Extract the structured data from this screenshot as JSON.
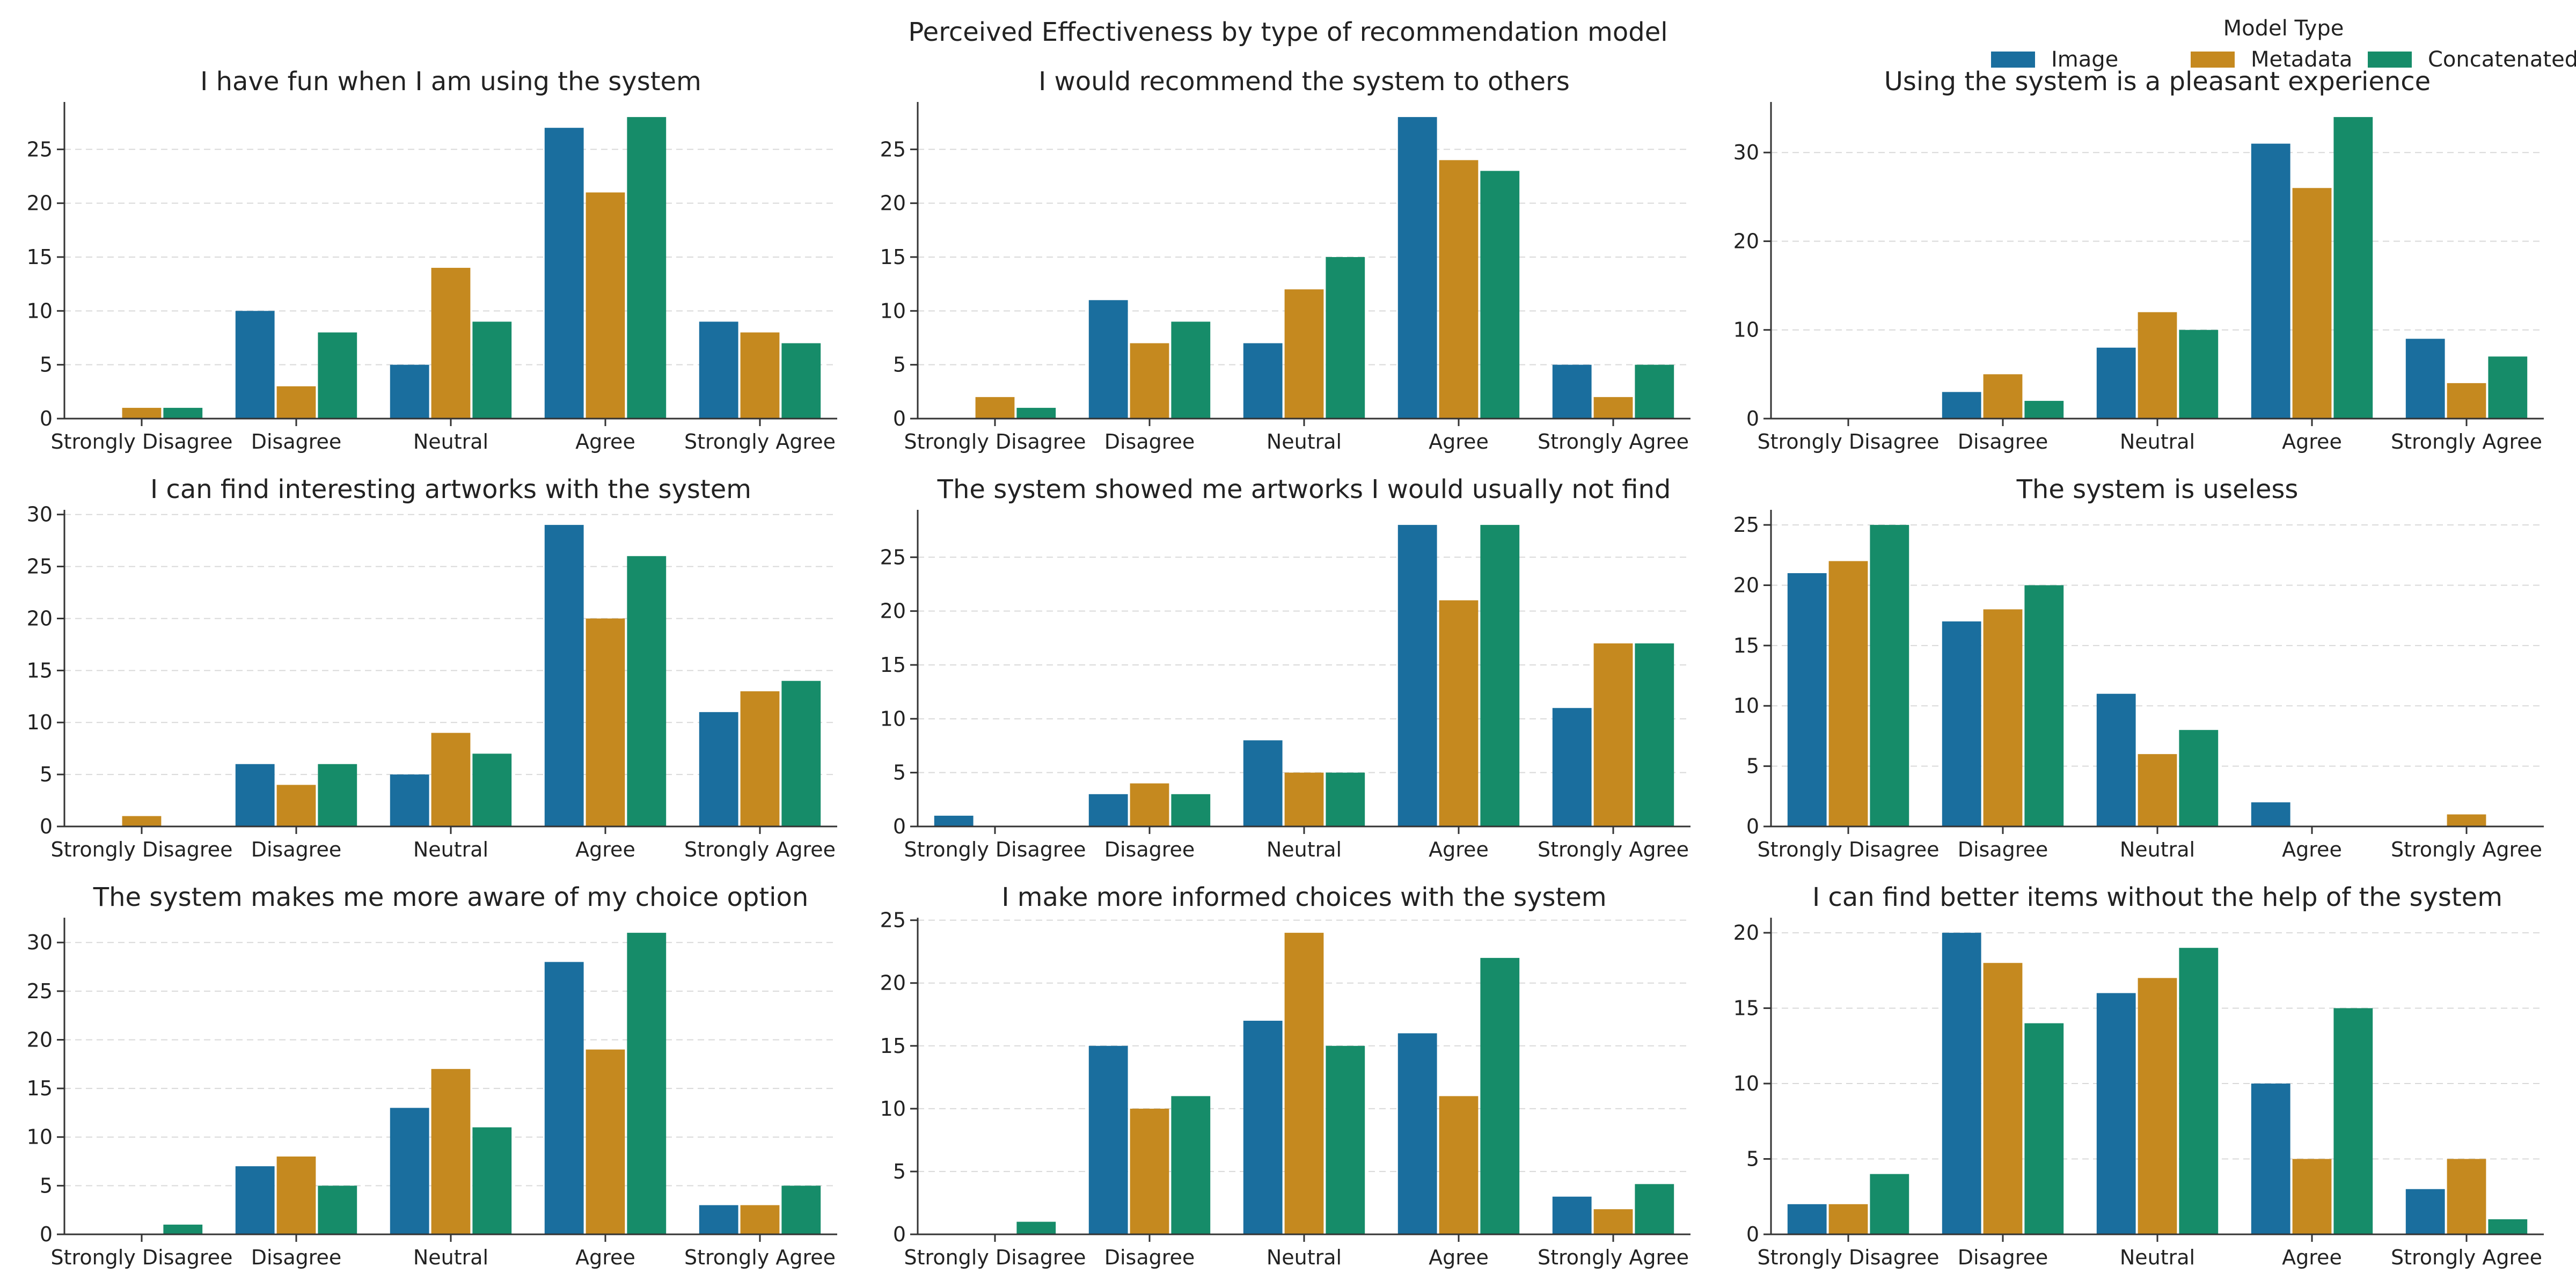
{
  "figure": {
    "suptitle": "Perceived Effectiveness by type of recommendation model",
    "legend": {
      "title": "Model Type",
      "placement": "top-right",
      "items": [
        {
          "label": "Image",
          "color": "#1a6e9e"
        },
        {
          "label": "Metadata",
          "color": "#c5891f"
        },
        {
          "label": "Concatenated",
          "color": "#168c69"
        }
      ]
    }
  },
  "chart_data": [
    {
      "type": "bar",
      "title": "I have fun when I am using the system",
      "categories": [
        "Strongly Disagree",
        "Disagree",
        "Neutral",
        "Agree",
        "Strongly Agree"
      ],
      "series": [
        {
          "name": "Image",
          "values": [
            0,
            10,
            5,
            27,
            9
          ]
        },
        {
          "name": "Metadata",
          "values": [
            1,
            3,
            14,
            21,
            8
          ]
        },
        {
          "name": "Concatenated",
          "values": [
            1,
            8,
            9,
            28,
            7
          ]
        }
      ],
      "ylim": [
        0,
        29.4
      ],
      "yticks": [
        0,
        5,
        10,
        15,
        20,
        25
      ],
      "grid": "y-dashed"
    },
    {
      "type": "bar",
      "title": "I would recommend the system to others",
      "categories": [
        "Strongly Disagree",
        "Disagree",
        "Neutral",
        "Agree",
        "Strongly Agree"
      ],
      "series": [
        {
          "name": "Image",
          "values": [
            0,
            11,
            7,
            28,
            5
          ]
        },
        {
          "name": "Metadata",
          "values": [
            2,
            7,
            12,
            24,
            2
          ]
        },
        {
          "name": "Concatenated",
          "values": [
            1,
            9,
            15,
            23,
            5
          ]
        }
      ],
      "ylim": [
        0,
        29.4
      ],
      "yticks": [
        0,
        5,
        10,
        15,
        20,
        25
      ],
      "grid": "y-dashed"
    },
    {
      "type": "bar",
      "title": "Using the system is a pleasant experience",
      "categories": [
        "Strongly Disagree",
        "Disagree",
        "Neutral",
        "Agree",
        "Strongly Agree"
      ],
      "series": [
        {
          "name": "Image",
          "values": [
            0,
            3,
            8,
            31,
            9
          ]
        },
        {
          "name": "Metadata",
          "values": [
            0,
            5,
            12,
            26,
            4
          ]
        },
        {
          "name": "Concatenated",
          "values": [
            0,
            2,
            10,
            34,
            7
          ]
        }
      ],
      "ylim": [
        0,
        35.7
      ],
      "yticks": [
        0,
        10,
        20,
        30
      ],
      "grid": "y-dashed"
    },
    {
      "type": "bar",
      "title": "I can find interesting artworks with the system",
      "categories": [
        "Strongly Disagree",
        "Disagree",
        "Neutral",
        "Agree",
        "Strongly Agree"
      ],
      "series": [
        {
          "name": "Image",
          "values": [
            0,
            6,
            5,
            29,
            11
          ]
        },
        {
          "name": "Metadata",
          "values": [
            1,
            4,
            9,
            20,
            13
          ]
        },
        {
          "name": "Concatenated",
          "values": [
            0,
            6,
            7,
            26,
            14
          ]
        }
      ],
      "ylim": [
        0,
        30.45
      ],
      "yticks": [
        0,
        5,
        10,
        15,
        20,
        25,
        30
      ],
      "grid": "y-dashed"
    },
    {
      "type": "bar",
      "title": "The system showed me artworks I would usually not find",
      "categories": [
        "Strongly Disagree",
        "Disagree",
        "Neutral",
        "Agree",
        "Strongly Agree"
      ],
      "series": [
        {
          "name": "Image",
          "values": [
            1,
            3,
            8,
            28,
            11
          ]
        },
        {
          "name": "Metadata",
          "values": [
            0,
            4,
            5,
            21,
            17
          ]
        },
        {
          "name": "Concatenated",
          "values": [
            0,
            3,
            5,
            28,
            17
          ]
        }
      ],
      "ylim": [
        0,
        29.4
      ],
      "yticks": [
        0,
        5,
        10,
        15,
        20,
        25
      ],
      "grid": "y-dashed"
    },
    {
      "type": "bar",
      "title": "The system is useless",
      "categories": [
        "Strongly Disagree",
        "Disagree",
        "Neutral",
        "Agree",
        "Strongly Agree"
      ],
      "series": [
        {
          "name": "Image",
          "values": [
            21,
            17,
            11,
            2,
            0
          ]
        },
        {
          "name": "Metadata",
          "values": [
            22,
            18,
            6,
            0,
            1
          ]
        },
        {
          "name": "Concatenated",
          "values": [
            25,
            20,
            8,
            0,
            0
          ]
        }
      ],
      "ylim": [
        0,
        26.25
      ],
      "yticks": [
        0,
        5,
        10,
        15,
        20,
        25
      ],
      "grid": "y-dashed"
    },
    {
      "type": "bar",
      "title": "The system makes me more aware of my choice option",
      "categories": [
        "Strongly Disagree",
        "Disagree",
        "Neutral",
        "Agree",
        "Strongly Agree"
      ],
      "series": [
        {
          "name": "Image",
          "values": [
            0,
            7,
            13,
            28,
            3
          ]
        },
        {
          "name": "Metadata",
          "values": [
            0,
            8,
            17,
            19,
            3
          ]
        },
        {
          "name": "Concatenated",
          "values": [
            1,
            5,
            11,
            31,
            5
          ]
        }
      ],
      "ylim": [
        0,
        32.55
      ],
      "yticks": [
        0,
        5,
        10,
        15,
        20,
        25,
        30
      ],
      "grid": "y-dashed"
    },
    {
      "type": "bar",
      "title": "I make more informed choices with the system",
      "categories": [
        "Strongly Disagree",
        "Disagree",
        "Neutral",
        "Agree",
        "Strongly Agree"
      ],
      "series": [
        {
          "name": "Image",
          "values": [
            0,
            15,
            17,
            16,
            3
          ]
        },
        {
          "name": "Metadata",
          "values": [
            0,
            10,
            24,
            11,
            2
          ]
        },
        {
          "name": "Concatenated",
          "values": [
            1,
            11,
            15,
            22,
            4
          ]
        }
      ],
      "ylim": [
        0,
        25.2
      ],
      "yticks": [
        0,
        5,
        10,
        15,
        20,
        25
      ],
      "grid": "y-dashed"
    },
    {
      "type": "bar",
      "title": "I can find better items without the help of the system",
      "categories": [
        "Strongly Disagree",
        "Disagree",
        "Neutral",
        "Agree",
        "Strongly Agree"
      ],
      "series": [
        {
          "name": "Image",
          "values": [
            2,
            20,
            16,
            10,
            3
          ]
        },
        {
          "name": "Metadata",
          "values": [
            2,
            18,
            17,
            5,
            5
          ]
        },
        {
          "name": "Concatenated",
          "values": [
            4,
            14,
            19,
            15,
            1
          ]
        }
      ],
      "ylim": [
        0,
        21
      ],
      "yticks": [
        0,
        5,
        10,
        15,
        20
      ],
      "grid": "y-dashed"
    }
  ]
}
